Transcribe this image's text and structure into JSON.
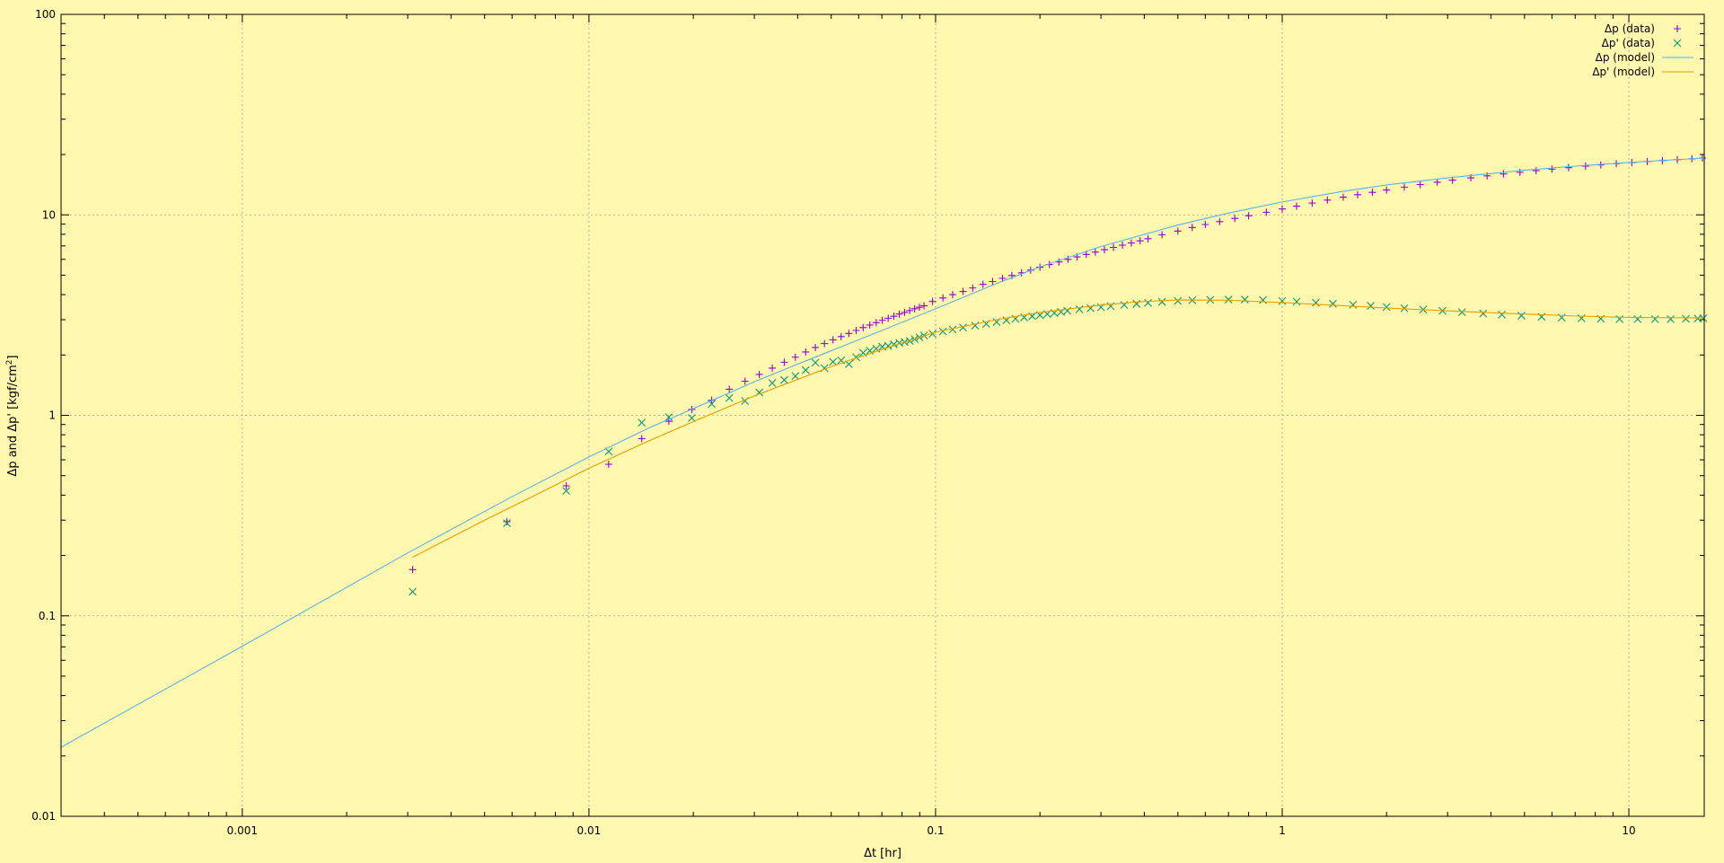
{
  "chart_data": {
    "type": "scatter",
    "title": "",
    "xlabel": "Δt [hr]",
    "ylabel_main": "Δp  and  Δp' [kgf/cm",
    "ylabel_sup": "2",
    "ylabel_tail": "]",
    "xscale": "log",
    "yscale": "log",
    "xlim": [
      0.0003,
      16.5
    ],
    "ylim": [
      0.01,
      100
    ],
    "grid": true,
    "legend_position": "top-right",
    "x_ticks": [
      {
        "value": 0.001,
        "label": "0.001"
      },
      {
        "value": 0.01,
        "label": "0.01"
      },
      {
        "value": 0.1,
        "label": "0.1"
      },
      {
        "value": 1,
        "label": "1"
      },
      {
        "value": 10,
        "label": "10"
      }
    ],
    "y_ticks": [
      {
        "value": 0.01,
        "label": "0.01"
      },
      {
        "value": 0.1,
        "label": "0.1"
      },
      {
        "value": 1,
        "label": "1"
      },
      {
        "value": 10,
        "label": "10"
      },
      {
        "value": 100,
        "label": "100"
      }
    ],
    "series": [
      {
        "name": "Δp (data)",
        "kind": "points",
        "marker": "plus",
        "color": "#9400d3",
        "points": [
          [
            0.0031,
            0.17
          ],
          [
            0.0058,
            0.295
          ],
          [
            0.0086,
            0.445
          ],
          [
            0.0114,
            0.57
          ],
          [
            0.0142,
            0.765
          ],
          [
            0.017,
            0.935
          ],
          [
            0.0198,
            1.07
          ],
          [
            0.0226,
            1.19
          ],
          [
            0.0254,
            1.35
          ],
          [
            0.0282,
            1.48
          ],
          [
            0.031,
            1.6
          ],
          [
            0.0338,
            1.72
          ],
          [
            0.0366,
            1.84
          ],
          [
            0.0394,
            1.95
          ],
          [
            0.0422,
            2.07
          ],
          [
            0.045,
            2.18
          ],
          [
            0.0478,
            2.28
          ],
          [
            0.0506,
            2.38
          ],
          [
            0.0534,
            2.47
          ],
          [
            0.0562,
            2.56
          ],
          [
            0.059,
            2.65
          ],
          [
            0.0618,
            2.74
          ],
          [
            0.0646,
            2.82
          ],
          [
            0.0674,
            2.9
          ],
          [
            0.0702,
            2.98
          ],
          [
            0.073,
            3.05
          ],
          [
            0.0758,
            3.12
          ],
          [
            0.0786,
            3.2
          ],
          [
            0.0814,
            3.26
          ],
          [
            0.0842,
            3.33
          ],
          [
            0.087,
            3.4
          ],
          [
            0.0898,
            3.46
          ],
          [
            0.0926,
            3.52
          ],
          [
            0.098,
            3.7
          ],
          [
            0.105,
            3.85
          ],
          [
            0.112,
            4.0
          ],
          [
            0.12,
            4.15
          ],
          [
            0.128,
            4.32
          ],
          [
            0.137,
            4.5
          ],
          [
            0.146,
            4.65
          ],
          [
            0.156,
            4.82
          ],
          [
            0.166,
            4.98
          ],
          [
            0.177,
            5.14
          ],
          [
            0.188,
            5.3
          ],
          [
            0.2,
            5.48
          ],
          [
            0.213,
            5.65
          ],
          [
            0.227,
            5.82
          ],
          [
            0.241,
            6.0
          ],
          [
            0.256,
            6.17
          ],
          [
            0.272,
            6.35
          ],
          [
            0.289,
            6.52
          ],
          [
            0.307,
            6.7
          ],
          [
            0.326,
            6.88
          ],
          [
            0.346,
            7.06
          ],
          [
            0.367,
            7.24
          ],
          [
            0.389,
            7.42
          ],
          [
            0.41,
            7.6
          ],
          [
            0.45,
            7.95
          ],
          [
            0.5,
            8.3
          ],
          [
            0.55,
            8.65
          ],
          [
            0.6,
            8.95
          ],
          [
            0.66,
            9.25
          ],
          [
            0.73,
            9.6
          ],
          [
            0.8,
            9.9
          ],
          [
            0.9,
            10.3
          ],
          [
            1.0,
            10.7
          ],
          [
            1.1,
            11.05
          ],
          [
            1.22,
            11.45
          ],
          [
            1.35,
            11.85
          ],
          [
            1.5,
            12.25
          ],
          [
            1.65,
            12.6
          ],
          [
            1.82,
            12.95
          ],
          [
            2.0,
            13.3
          ],
          [
            2.25,
            13.75
          ],
          [
            2.5,
            14.15
          ],
          [
            2.8,
            14.55
          ],
          [
            3.1,
            14.9
          ],
          [
            3.5,
            15.3
          ],
          [
            3.9,
            15.65
          ],
          [
            4.35,
            16.0
          ],
          [
            4.85,
            16.3
          ],
          [
            5.4,
            16.6
          ],
          [
            6.0,
            16.9
          ],
          [
            6.7,
            17.2
          ],
          [
            7.5,
            17.5
          ],
          [
            8.3,
            17.75
          ],
          [
            9.2,
            18.0
          ],
          [
            10.2,
            18.25
          ],
          [
            11.3,
            18.45
          ],
          [
            12.5,
            18.65
          ],
          [
            13.8,
            18.85
          ],
          [
            15.2,
            19.05
          ],
          [
            16.3,
            19.2
          ]
        ]
      },
      {
        "name": "Δp' (data)",
        "kind": "points",
        "marker": "cross",
        "color": "#009e73",
        "points": [
          [
            0.0031,
            0.132
          ],
          [
            0.0058,
            0.29
          ],
          [
            0.0086,
            0.42
          ],
          [
            0.0114,
            0.66
          ],
          [
            0.0142,
            0.92
          ],
          [
            0.017,
            0.98
          ],
          [
            0.0198,
            0.97
          ],
          [
            0.0226,
            1.14
          ],
          [
            0.0254,
            1.22
          ],
          [
            0.0282,
            1.18
          ],
          [
            0.031,
            1.3
          ],
          [
            0.0338,
            1.45
          ],
          [
            0.0366,
            1.5
          ],
          [
            0.0394,
            1.57
          ],
          [
            0.0422,
            1.68
          ],
          [
            0.045,
            1.83
          ],
          [
            0.0478,
            1.72
          ],
          [
            0.0506,
            1.85
          ],
          [
            0.0534,
            1.88
          ],
          [
            0.0562,
            1.8
          ],
          [
            0.059,
            1.95
          ],
          [
            0.0618,
            2.05
          ],
          [
            0.0646,
            2.1
          ],
          [
            0.0674,
            2.15
          ],
          [
            0.0702,
            2.2
          ],
          [
            0.073,
            2.22
          ],
          [
            0.0758,
            2.26
          ],
          [
            0.0786,
            2.3
          ],
          [
            0.0814,
            2.32
          ],
          [
            0.0842,
            2.35
          ],
          [
            0.087,
            2.4
          ],
          [
            0.0898,
            2.45
          ],
          [
            0.0926,
            2.5
          ],
          [
            0.098,
            2.55
          ],
          [
            0.105,
            2.62
          ],
          [
            0.112,
            2.68
          ],
          [
            0.12,
            2.74
          ],
          [
            0.13,
            2.8
          ],
          [
            0.14,
            2.86
          ],
          [
            0.15,
            2.92
          ],
          [
            0.16,
            2.98
          ],
          [
            0.17,
            3.03
          ],
          [
            0.18,
            3.08
          ],
          [
            0.19,
            3.12
          ],
          [
            0.2,
            3.16
          ],
          [
            0.21,
            3.2
          ],
          [
            0.22,
            3.24
          ],
          [
            0.23,
            3.28
          ],
          [
            0.24,
            3.32
          ],
          [
            0.26,
            3.38
          ],
          [
            0.28,
            3.42
          ],
          [
            0.3,
            3.46
          ],
          [
            0.32,
            3.5
          ],
          [
            0.35,
            3.55
          ],
          [
            0.38,
            3.6
          ],
          [
            0.41,
            3.64
          ],
          [
            0.45,
            3.68
          ],
          [
            0.5,
            3.72
          ],
          [
            0.55,
            3.75
          ],
          [
            0.62,
            3.77
          ],
          [
            0.7,
            3.78
          ],
          [
            0.78,
            3.78
          ],
          [
            0.88,
            3.76
          ],
          [
            1.0,
            3.72
          ],
          [
            1.1,
            3.69
          ],
          [
            1.25,
            3.65
          ],
          [
            1.4,
            3.6
          ],
          [
            1.6,
            3.56
          ],
          [
            1.8,
            3.52
          ],
          [
            2.0,
            3.47
          ],
          [
            2.25,
            3.42
          ],
          [
            2.55,
            3.37
          ],
          [
            2.9,
            3.32
          ],
          [
            3.3,
            3.27
          ],
          [
            3.8,
            3.22
          ],
          [
            4.3,
            3.18
          ],
          [
            4.9,
            3.14
          ],
          [
            5.6,
            3.1
          ],
          [
            6.4,
            3.07
          ],
          [
            7.3,
            3.05
          ],
          [
            8.3,
            3.03
          ],
          [
            9.4,
            3.02
          ],
          [
            10.6,
            3.02
          ],
          [
            11.9,
            3.02
          ],
          [
            13.2,
            3.02
          ],
          [
            14.6,
            3.03
          ],
          [
            15.8,
            3.04
          ],
          [
            16.4,
            3.05
          ]
        ]
      },
      {
        "name": "Δp (model)",
        "kind": "line",
        "color": "#56b4e9",
        "points": [
          [
            0.0003,
            0.0221
          ],
          [
            0.001,
            0.0705
          ],
          [
            0.003,
            0.206
          ],
          [
            0.006,
            0.393
          ],
          [
            0.01,
            0.62
          ],
          [
            0.015,
            0.87
          ],
          [
            0.02,
            1.08
          ],
          [
            0.025,
            1.28
          ],
          [
            0.03,
            1.47
          ],
          [
            0.04,
            1.8
          ],
          [
            0.05,
            2.1
          ],
          [
            0.07,
            2.65
          ],
          [
            0.1,
            3.4
          ],
          [
            0.15,
            4.55
          ],
          [
            0.2,
            5.5
          ],
          [
            0.3,
            6.95
          ],
          [
            0.5,
            8.9
          ],
          [
            0.7,
            10.2
          ],
          [
            1.0,
            11.6
          ],
          [
            1.5,
            13.1
          ],
          [
            2.0,
            14.1
          ],
          [
            3.0,
            15.3
          ],
          [
            5.0,
            16.7
          ],
          [
            7.0,
            17.5
          ],
          [
            10.0,
            18.25
          ],
          [
            16.5,
            19.2
          ]
        ]
      },
      {
        "name": "Δp' (model)",
        "kind": "line",
        "color": "#e69f00",
        "points": [
          [
            0.0031,
            0.196
          ],
          [
            0.005,
            0.3
          ],
          [
            0.007,
            0.4
          ],
          [
            0.01,
            0.545
          ],
          [
            0.015,
            0.75
          ],
          [
            0.02,
            0.93
          ],
          [
            0.03,
            1.25
          ],
          [
            0.05,
            1.75
          ],
          [
            0.07,
            2.13
          ],
          [
            0.1,
            2.6
          ],
          [
            0.15,
            3.0
          ],
          [
            0.2,
            3.26
          ],
          [
            0.3,
            3.55
          ],
          [
            0.4,
            3.7
          ],
          [
            0.5,
            3.76
          ],
          [
            0.7,
            3.75
          ],
          [
            1.0,
            3.65
          ],
          [
            1.5,
            3.52
          ],
          [
            2.0,
            3.43
          ],
          [
            3.0,
            3.32
          ],
          [
            5.0,
            3.2
          ],
          [
            7.0,
            3.13
          ],
          [
            10.0,
            3.08
          ],
          [
            16.5,
            3.06
          ]
        ]
      }
    ]
  }
}
